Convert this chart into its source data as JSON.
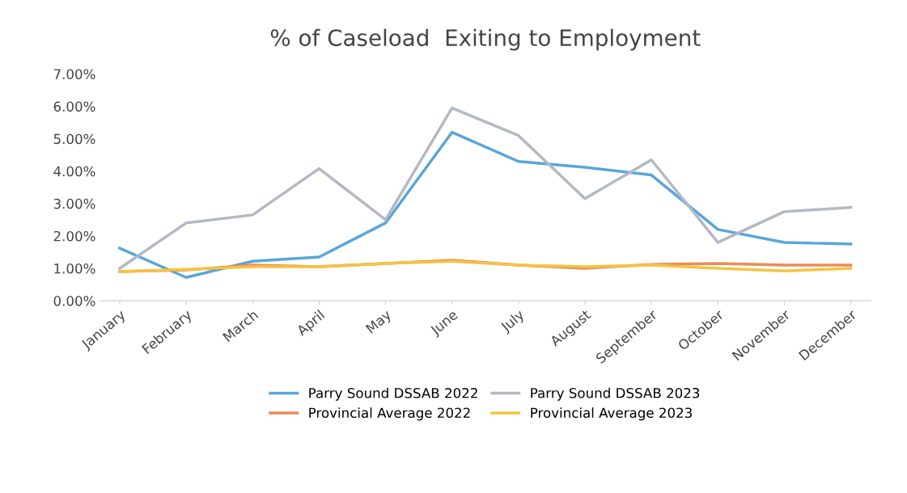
{
  "chart_data": {
    "type": "line",
    "title": "% of Caseload  Exiting to Employment",
    "categories": [
      "January",
      "February",
      "March",
      "April",
      "May",
      "June",
      "July",
      "August",
      "September",
      "October",
      "November",
      "December"
    ],
    "series": [
      {
        "name": "Parry Sound DSSAB 2022",
        "color": "#5aa5db",
        "values": [
          1.62,
          0.72,
          1.22,
          1.35,
          2.4,
          5.2,
          4.3,
          4.12,
          3.88,
          2.2,
          1.8,
          1.75
        ]
      },
      {
        "name": "Provincial Average 2022",
        "color": "#ec8a55",
        "values": [
          0.9,
          0.95,
          1.1,
          1.05,
          1.15,
          1.25,
          1.1,
          1.0,
          1.12,
          1.15,
          1.1,
          1.1
        ]
      },
      {
        "name": "Parry Sound DSSAB 2023",
        "color": "#b4b8c4",
        "values": [
          1.0,
          2.4,
          2.65,
          4.08,
          2.5,
          5.95,
          5.1,
          3.15,
          4.35,
          1.8,
          2.75,
          2.88
        ]
      },
      {
        "name": "Provincial Average 2023",
        "color": "#f5c342",
        "values": [
          0.9,
          0.97,
          1.05,
          1.05,
          1.15,
          1.22,
          1.1,
          1.05,
          1.1,
          1.0,
          0.92,
          1.0
        ]
      }
    ],
    "ylim": [
      0,
      7
    ],
    "yticks": [
      {
        "value": 0,
        "label": "0.00%"
      },
      {
        "value": 1,
        "label": "1.00%"
      },
      {
        "value": 2,
        "label": "2.00%"
      },
      {
        "value": 3,
        "label": "3.00%"
      },
      {
        "value": 4,
        "label": "4.00%"
      },
      {
        "value": 5,
        "label": "5.00%"
      },
      {
        "value": 6,
        "label": "6.00%"
      },
      {
        "value": 7,
        "label": "7.00%"
      }
    ],
    "legend": "bottom",
    "marker": "none",
    "line_style": "solid"
  }
}
